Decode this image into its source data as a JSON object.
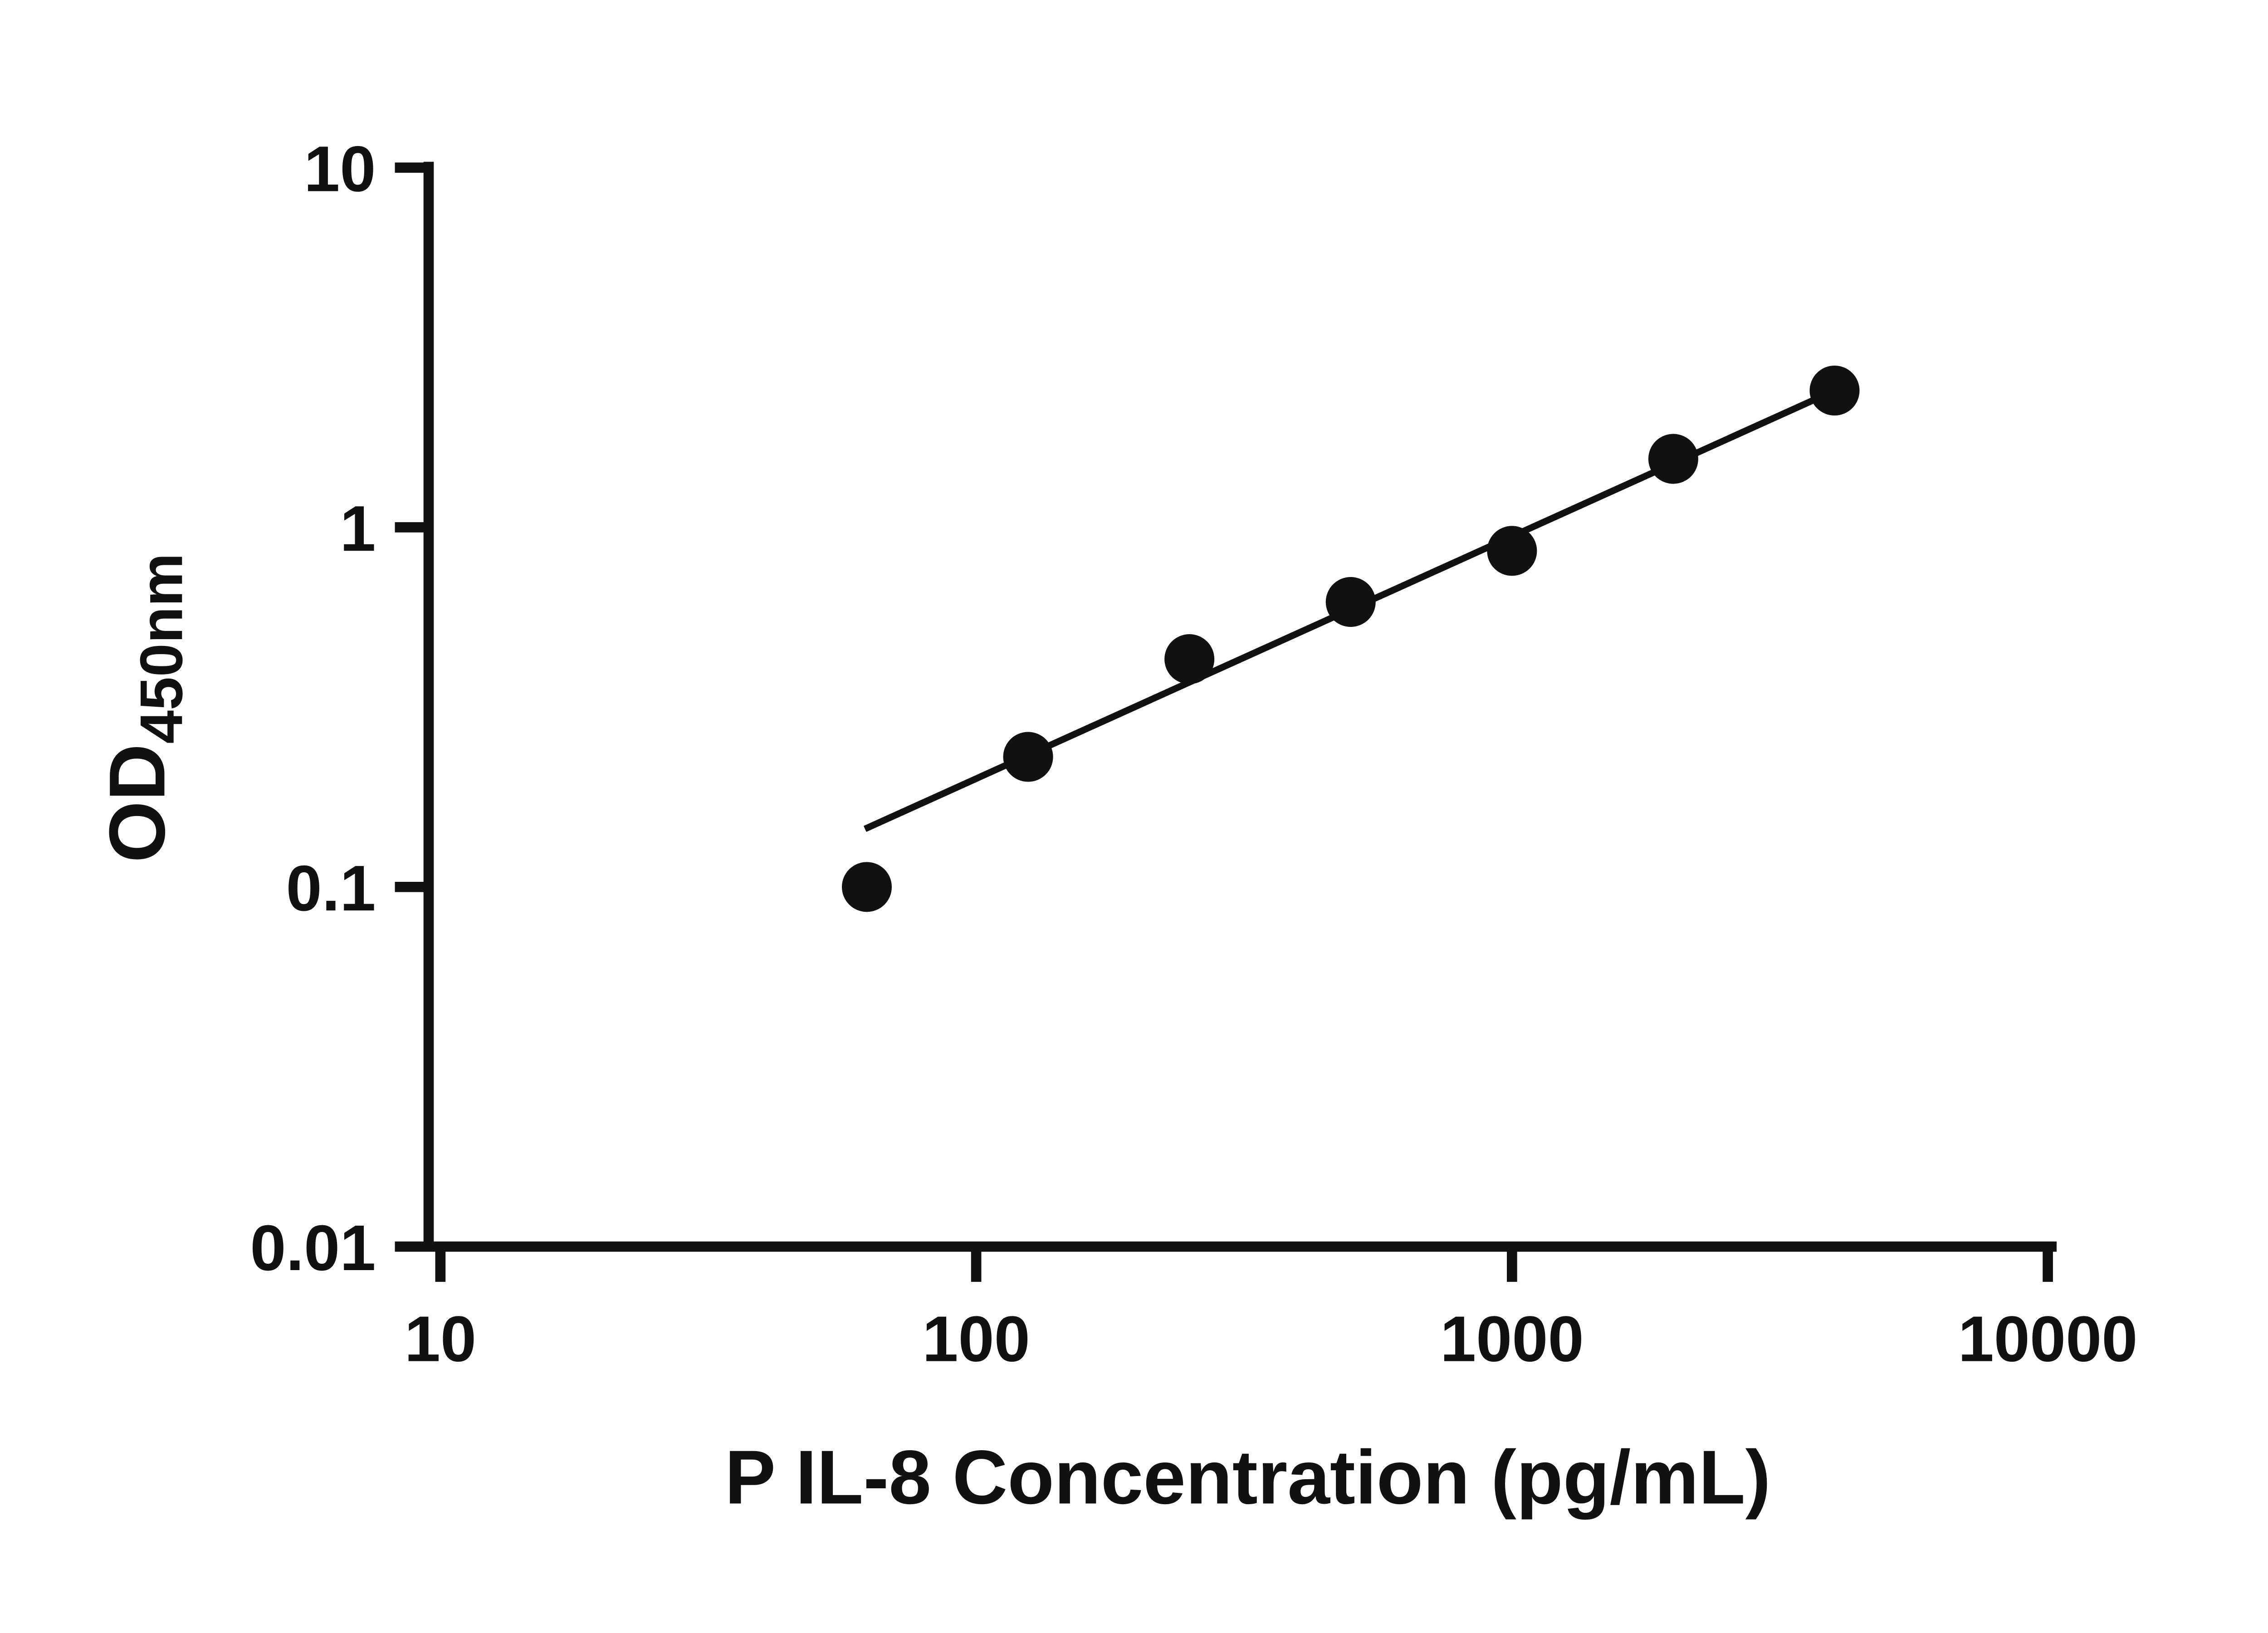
{
  "chart_data": {
    "type": "scatter",
    "title": "",
    "xlabel": "P IL-8 Concentration (pg/mL)",
    "ylabel_main": "OD",
    "ylabel_sub": "450nm",
    "x_scale": "log",
    "y_scale": "log",
    "xlim": [
      10,
      10000
    ],
    "ylim": [
      0.01,
      10
    ],
    "x_ticks": [
      10,
      100,
      1000,
      10000
    ],
    "x_tick_labels": [
      "10",
      "100",
      "1000",
      "10000"
    ],
    "y_ticks": [
      10,
      1,
      0.1,
      0.01
    ],
    "y_tick_labels": [
      "10",
      "1",
      "0.1",
      "0.01"
    ],
    "grid": false,
    "legend": null,
    "marker_color": "#111111",
    "line_color": "#111111",
    "background_color": "#ffffff",
    "points": [
      {
        "x": 62.5,
        "y": 0.1
      },
      {
        "x": 125,
        "y": 0.23
      },
      {
        "x": 250,
        "y": 0.43
      },
      {
        "x": 500,
        "y": 0.62
      },
      {
        "x": 1000,
        "y": 0.86
      },
      {
        "x": 2000,
        "y": 1.55
      },
      {
        "x": 4000,
        "y": 2.4
      }
    ],
    "trendline": {
      "x1": 62,
      "y1": 0.145,
      "x2": 4000,
      "y2": 2.4
    }
  }
}
